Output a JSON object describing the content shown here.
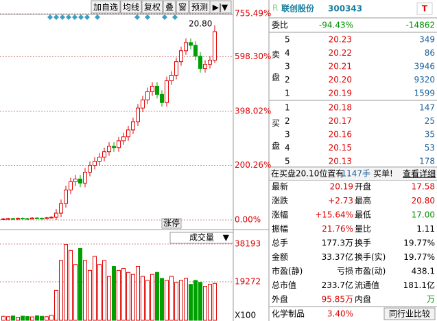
{
  "toolbar": [
    "加自选",
    "均线",
    "复权",
    "叠",
    "窗",
    "预测"
  ],
  "chart_data": {
    "type": "candlestick",
    "ylim": [
      0,
      755.49
    ],
    "yticks": [
      {
        "value": 0,
        "label": "0.00%"
      },
      {
        "value": 200.26,
        "label": "200.26%"
      },
      {
        "value": 398.02,
        "label": "398.02%"
      },
      {
        "value": 598.3,
        "label": "598.30%"
      },
      {
        "value": 755.49,
        "label": "755.49%"
      }
    ],
    "open": [
      3,
      4,
      5,
      3,
      6,
      5,
      4,
      7,
      6,
      5,
      8,
      10,
      25,
      60,
      110,
      140,
      150,
      135,
      175,
      200,
      215,
      230,
      250,
      270,
      265,
      290,
      305,
      330,
      360,
      410,
      440,
      470,
      490,
      460,
      430,
      510,
      530,
      580,
      620,
      650,
      640,
      600,
      555,
      570,
      585
    ],
    "close": [
      4,
      5,
      3,
      6,
      5,
      4,
      7,
      6,
      5,
      8,
      10,
      25,
      60,
      110,
      140,
      150,
      135,
      175,
      200,
      215,
      230,
      250,
      270,
      265,
      290,
      305,
      330,
      360,
      410,
      440,
      470,
      490,
      460,
      430,
      510,
      530,
      580,
      620,
      650,
      640,
      600,
      555,
      570,
      585,
      690
    ],
    "high": [
      7,
      8,
      8,
      9,
      9,
      8,
      10,
      10,
      9,
      11,
      13,
      40,
      75,
      125,
      155,
      165,
      165,
      190,
      215,
      230,
      245,
      265,
      285,
      285,
      305,
      320,
      345,
      375,
      425,
      455,
      485,
      505,
      505,
      475,
      525,
      545,
      595,
      635,
      665,
      665,
      655,
      615,
      585,
      600,
      713
    ],
    "low": [
      0,
      1,
      0,
      0,
      2,
      1,
      1,
      3,
      2,
      2,
      5,
      0,
      10,
      45,
      95,
      125,
      120,
      120,
      160,
      185,
      200,
      215,
      235,
      250,
      250,
      275,
      290,
      315,
      345,
      395,
      425,
      455,
      445,
      415,
      415,
      495,
      515,
      565,
      605,
      625,
      585,
      540,
      540,
      555,
      575
    ],
    "high_label": "20.80",
    "marker": "涨停",
    "volume": {
      "title": "成交量",
      "ylim": [
        0,
        38193
      ],
      "yticks": [
        19272,
        38193
      ],
      "unit": "X100",
      "values": [
        2000,
        1800,
        2200,
        1500,
        2100,
        1900,
        1700,
        2300,
        2000,
        1800,
        2600,
        15000,
        30000,
        38000,
        35000,
        28000,
        36000,
        30000,
        25000,
        32000,
        28000,
        30000,
        22000,
        27000,
        25000,
        26000,
        24000,
        23000,
        27000,
        22000,
        20000,
        23000,
        24000,
        21000,
        20000,
        22000,
        19000,
        20000,
        21000,
        18000,
        20000,
        19000,
        17000,
        18000,
        18500
      ]
    }
  },
  "quote": {
    "name": "联创股份",
    "code": "300343",
    "commission": [
      "委比",
      "-94.43%",
      "-14862"
    ],
    "sell_label": [
      "卖",
      "盘"
    ],
    "sell": [
      [
        "5",
        "20.23",
        "349"
      ],
      [
        "4",
        "20.22",
        "86"
      ],
      [
        "3",
        "20.21",
        "3946"
      ],
      [
        "2",
        "20.20",
        "9320"
      ],
      [
        "1",
        "20.19",
        "1599"
      ]
    ],
    "buy_label": [
      "买",
      "盘"
    ],
    "buy": [
      [
        "1",
        "20.18",
        "147"
      ],
      [
        "2",
        "20.17",
        "25"
      ],
      [
        "3",
        "20.16",
        "35"
      ],
      [
        "4",
        "20.15",
        "53"
      ],
      [
        "5",
        "20.13",
        "178"
      ]
    ],
    "notice": [
      "在买盘20.10位置有",
      "1147手",
      "买单!",
      "查看详细"
    ],
    "stats": [
      [
        "最新",
        "20.19",
        "开盘",
        "17.58"
      ],
      [
        "涨跌",
        "+2.73",
        "最高",
        "20.80"
      ],
      [
        "涨幅",
        "+15.64%",
        "最低",
        "17.00"
      ],
      [
        "振幅",
        "21.76%",
        "量比",
        "1.11"
      ],
      [
        "总手",
        "177.3万",
        "换手",
        "19.77%"
      ],
      [
        "金额",
        "33.37亿",
        "换手(实)",
        "19.77%"
      ],
      [
        "市盈(静)",
        "亏损",
        "市盈(动)",
        "438.1"
      ],
      [
        "总市值",
        "233.7亿",
        "流通值",
        "181.1亿"
      ],
      [
        "外盘",
        "95.85万",
        "内盘",
        "万"
      ]
    ],
    "footer": [
      "化学制品",
      "3.40%",
      "同行业比较"
    ]
  }
}
